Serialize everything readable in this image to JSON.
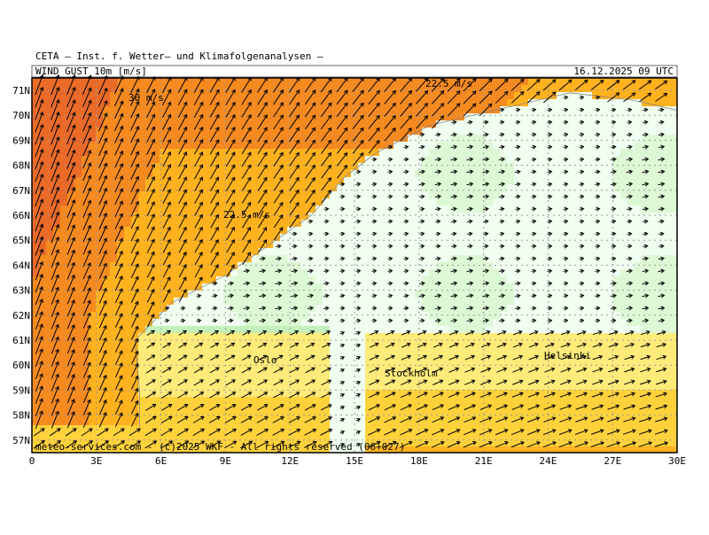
{
  "header": {
    "institute": "CETA — Inst. f. Wetter— und Klimafolgenanalysen —",
    "title": "WIND GUST 10m [m/s]",
    "date": "16.12.2025 09 UTC"
  },
  "map": {
    "lat_labels": [
      "71N",
      "70N",
      "69N",
      "68N",
      "67N",
      "66N",
      "65N",
      "64N",
      "63N",
      "62N",
      "61N",
      "60N",
      "59N",
      "58N",
      "57N"
    ],
    "lon_labels": [
      "0",
      "3E",
      "6E",
      "9E",
      "12E",
      "15E",
      "18E",
      "21E",
      "24E",
      "27E",
      "30E"
    ],
    "places": [
      "Oslo",
      "Stockholm",
      "Helsinki"
    ],
    "contour_labels": [
      "30 m/s",
      "22.5 m/s",
      "22.5 m/s"
    ],
    "footer": "meteo-services.com - (c)2025 WKF - All rights reserved (06+027)"
  }
}
